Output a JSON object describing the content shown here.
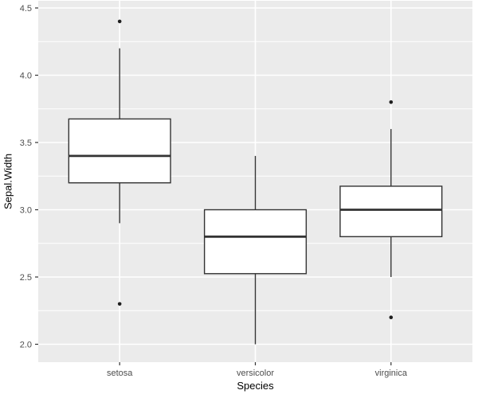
{
  "chart_data": {
    "type": "boxplot",
    "title": "",
    "xlabel": "Species",
    "ylabel": "Sepal.Width",
    "categories": [
      "setosa",
      "versicolor",
      "virginica"
    ],
    "y_ticks": [
      "2.0",
      "2.5",
      "3.0",
      "3.5",
      "4.0",
      "4.5"
    ],
    "y_tick_values": [
      2.0,
      2.5,
      3.0,
      3.5,
      4.0,
      4.5
    ],
    "y_minor_gridlines": [
      2.25,
      2.75,
      3.25,
      3.75,
      4.25
    ],
    "ylim": [
      1.87,
      4.55
    ],
    "grid": true,
    "legend": "none",
    "series": [
      {
        "name": "setosa",
        "lower_whisker": 2.9,
        "q1": 3.2,
        "median": 3.4,
        "q3": 3.675,
        "upper_whisker": 4.2,
        "outliers": [
          4.4,
          2.3
        ]
      },
      {
        "name": "versicolor",
        "lower_whisker": 2.0,
        "q1": 2.525,
        "median": 2.8,
        "q3": 3.0,
        "upper_whisker": 3.4,
        "outliers": []
      },
      {
        "name": "virginica",
        "lower_whisker": 2.5,
        "q1": 2.8,
        "median": 3.0,
        "q3": 3.175,
        "upper_whisker": 3.6,
        "outliers": [
          3.8,
          2.2
        ]
      }
    ],
    "colors": {
      "panel_bg": "#EBEBEB",
      "grid": "#FFFFFF",
      "box_fill": "#FFFFFF",
      "box_border": "#333333",
      "outlier": "#1F1F1F",
      "tick_mark": "#333333",
      "tick_label": "#4D4D4D",
      "axis_title": "#000000"
    }
  }
}
